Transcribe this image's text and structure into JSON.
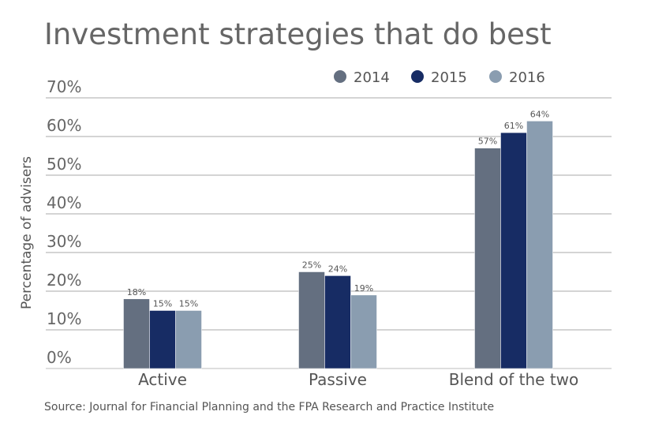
{
  "chart_data": {
    "type": "bar",
    "title": "Investment strategies that do best",
    "ylabel": "Percentage of advisers",
    "xlabel": "",
    "ylim": [
      0,
      70
    ],
    "yticks": [
      0,
      10,
      20,
      30,
      40,
      50,
      60,
      70
    ],
    "ytick_labels": [
      "0%",
      "10%",
      "20%",
      "30%",
      "40%",
      "50%",
      "60%",
      "70%"
    ],
    "categories": [
      "Active",
      "Passive",
      "Blend of the two"
    ],
    "series": [
      {
        "name": "2014",
        "values": [
          18,
          25,
          57
        ],
        "labels": [
          "18%",
          "25%",
          "57%"
        ],
        "color": "#646f80"
      },
      {
        "name": "2015",
        "values": [
          15,
          24,
          61
        ],
        "labels": [
          "15%",
          "24%",
          "61%"
        ],
        "color": "#172c64"
      },
      {
        "name": "2016",
        "values": [
          15,
          19,
          64
        ],
        "labels": [
          "15%",
          "19%",
          "64%"
        ],
        "color": "#8a9db0"
      }
    ],
    "legend_position": "top-right",
    "grid": true,
    "source": "Source: Journal for Financial Planning and the FPA Research and Practice Institute"
  }
}
